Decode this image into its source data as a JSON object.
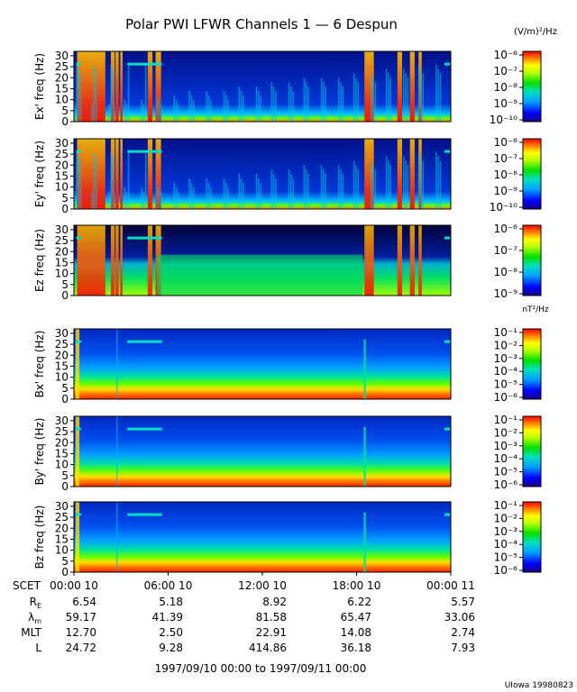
{
  "chart_data": {
    "type": "heatmap",
    "title": "Polar PWI LFWR Channels 1 — 6 Despun",
    "units": {
      "electric": "(V/m)²/Hz",
      "magnetic": "nT²/Hz"
    },
    "yticks": [
      "0",
      "5",
      "10",
      "15",
      "20",
      "25",
      "30"
    ],
    "ylim": [
      0,
      32
    ],
    "xlim_hours": [
      0,
      24
    ],
    "panels": [
      {
        "ylabel": "Ex' freq (Hz)",
        "colorbar": [
          "10⁻⁶",
          "10⁻⁷",
          "10⁻⁸",
          "10⁻⁹",
          "10⁻¹⁰"
        ]
      },
      {
        "ylabel": "Ey' freq (Hz)",
        "colorbar": [
          "10⁻⁶",
          "10⁻⁷",
          "10⁻⁸",
          "10⁻⁹",
          "10⁻¹⁰"
        ]
      },
      {
        "ylabel": "Ez freq (Hz)",
        "colorbar": [
          "10⁻⁶",
          "10⁻⁷",
          "10⁻⁸",
          "10⁻⁹"
        ]
      },
      {
        "ylabel": "Bx' freq (Hz)",
        "colorbar": [
          "10⁻¹",
          "10⁻²",
          "10⁻³",
          "10⁻⁴",
          "10⁻⁵",
          "10⁻⁶"
        ]
      },
      {
        "ylabel": "By' freq (Hz)",
        "colorbar": [
          "10⁻¹",
          "10⁻²",
          "10⁻³",
          "10⁻⁴",
          "10⁻⁵",
          "10⁻⁶"
        ]
      },
      {
        "ylabel": "Bz freq (Hz)",
        "colorbar": [
          "10⁻¹",
          "10⁻²",
          "10⁻³",
          "10⁻⁴",
          "10⁻⁵",
          "10⁻⁶"
        ]
      }
    ],
    "time_axis": {
      "label": "SCET",
      "ticks": [
        "00:00 10",
        "06:00 10",
        "12:00 10",
        "18:00 10",
        "00:00 11"
      ],
      "tick_hours": [
        0,
        6,
        12,
        18,
        24
      ]
    },
    "ephemeris": [
      {
        "label": "R",
        "sub": "E",
        "values": [
          "6.54",
          "5.18",
          "8.92",
          "6.22",
          "5.57"
        ]
      },
      {
        "label": "λ",
        "sub": "m",
        "values": [
          "59.17",
          "41.39",
          "81.58",
          "65.47",
          "33.06"
        ]
      },
      {
        "label": "MLT",
        "sub": "",
        "values": [
          "12.70",
          "2.50",
          "22.91",
          "14.08",
          "2.74"
        ]
      },
      {
        "label": "L",
        "sub": "",
        "values": [
          "24.72",
          "9.28",
          "414.86",
          "36.18",
          "7.93"
        ]
      }
    ],
    "date_range": "1997/09/10 00:00 to 1997/09/11 00:00",
    "credit": "UIowa 19980823"
  }
}
